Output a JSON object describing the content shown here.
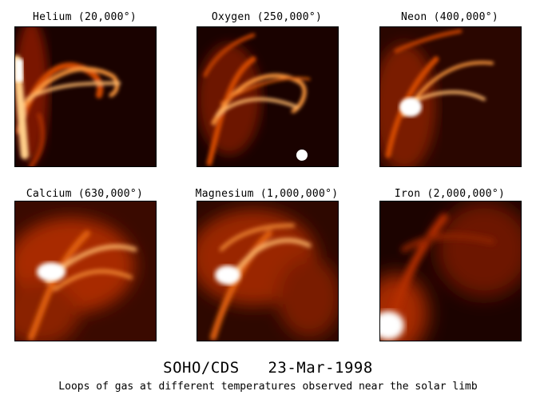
{
  "panels": [
    {
      "title": "Helium (20,000°)"
    },
    {
      "title": "Oxygen (250,000°)"
    },
    {
      "title": "Neon (400,000°)"
    },
    {
      "title": "Calcium (630,000°)"
    },
    {
      "title": "Magnesium (1,000,000°)"
    },
    {
      "title": "Iron (2,000,000°)"
    }
  ],
  "footer": {
    "title": "SOHO/CDS   23-Mar-1998",
    "caption": "Loops of gas at different temperatures observed near the solar limb"
  },
  "colors": {
    "background": "#ffffff",
    "dark": "#1a0200",
    "mid": "#b52d00",
    "bright": "#ffb86a",
    "hot": "#ffffff"
  }
}
